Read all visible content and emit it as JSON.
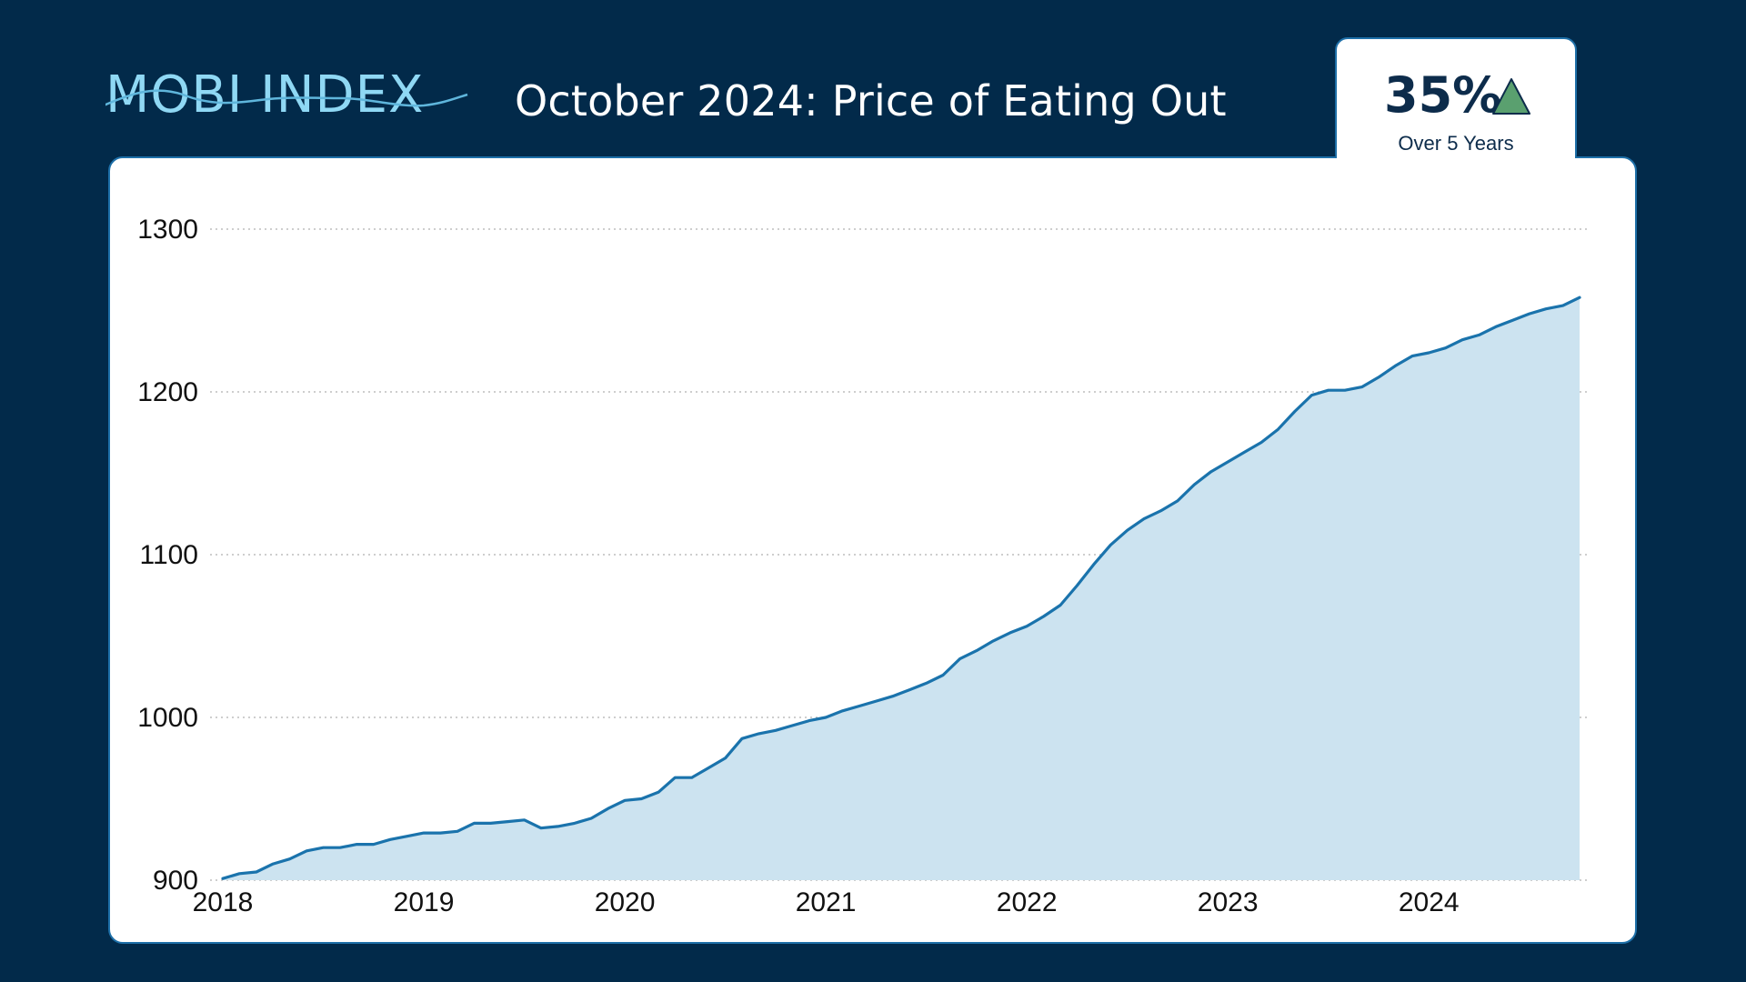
{
  "brand": {
    "logo_text": "MOBI INDEX"
  },
  "header": {
    "title": "October 2024: Price of Eating Out"
  },
  "badge": {
    "value": "35%",
    "caption": "Over 5 Years",
    "arrow_color": "#5aa06f",
    "arrow_icon": "triangle-up-icon"
  },
  "colors": {
    "background": "#022a4a",
    "line": "#1a73ac",
    "fill": "#cce3f0",
    "grid": "#b0b0b0"
  },
  "chart_data": {
    "type": "area",
    "title": "October 2024: Price of Eating Out",
    "xlabel": "",
    "ylabel": "",
    "xlim": [
      2018,
      2024.75
    ],
    "ylim": [
      900,
      1300
    ],
    "yticks": [
      900,
      1000,
      1100,
      1200,
      1300
    ],
    "xticks": [
      2018,
      2019,
      2020,
      2021,
      2022,
      2023,
      2024
    ],
    "ytick_labels": [
      "900",
      "1000",
      "1100",
      "1200",
      "1300"
    ],
    "xtick_labels": [
      "2018",
      "2019",
      "2020",
      "2021",
      "2022",
      "2023",
      "2024"
    ],
    "grid": "horizontal dotted",
    "legend": "none",
    "series": [
      {
        "x": [
          2018.0,
          2018.083,
          2018.167,
          2018.25,
          2018.333,
          2018.417,
          2018.5,
          2018.583,
          2018.667,
          2018.75,
          2018.833,
          2018.917,
          2019.0,
          2019.083,
          2019.167,
          2019.25,
          2019.333,
          2019.417,
          2019.5,
          2019.583,
          2019.667,
          2019.75,
          2019.833,
          2019.917,
          2020.0,
          2020.083,
          2020.167,
          2020.25,
          2020.333,
          2020.417,
          2020.5,
          2020.583,
          2020.667,
          2020.75,
          2020.833,
          2020.917,
          2021.0,
          2021.083,
          2021.167,
          2021.25,
          2021.333,
          2021.417,
          2021.5,
          2021.583,
          2021.667,
          2021.75,
          2021.833,
          2021.917,
          2022.0,
          2022.083,
          2022.167,
          2022.25,
          2022.333,
          2022.417,
          2022.5,
          2022.583,
          2022.667,
          2022.75,
          2022.833,
          2022.917,
          2023.0,
          2023.083,
          2023.167,
          2023.25,
          2023.333,
          2023.417,
          2023.5,
          2023.583,
          2023.667,
          2023.75,
          2023.833,
          2023.917,
          2024.0,
          2024.083,
          2024.167,
          2024.25,
          2024.333,
          2024.417,
          2024.5,
          2024.583,
          2024.667,
          2024.75
        ],
        "values": [
          901,
          904,
          905,
          910,
          913,
          918,
          920,
          920,
          922,
          922,
          925,
          927,
          929,
          929,
          930,
          935,
          935,
          936,
          937,
          932,
          933,
          935,
          938,
          944,
          949,
          950,
          954,
          963,
          963,
          969,
          975,
          987,
          990,
          992,
          995,
          998,
          1000,
          1004,
          1007,
          1010,
          1013,
          1017,
          1021,
          1026,
          1036,
          1041,
          1047,
          1052,
          1056,
          1062,
          1069,
          1081,
          1094,
          1106,
          1115,
          1122,
          1127,
          1133,
          1143,
          1151,
          1157,
          1163,
          1169,
          1177,
          1188,
          1198,
          1201,
          1201,
          1203,
          1209,
          1216,
          1222,
          1224,
          1227,
          1232,
          1235,
          1240,
          1244,
          1248,
          1251,
          1253,
          1258
        ]
      }
    ]
  }
}
